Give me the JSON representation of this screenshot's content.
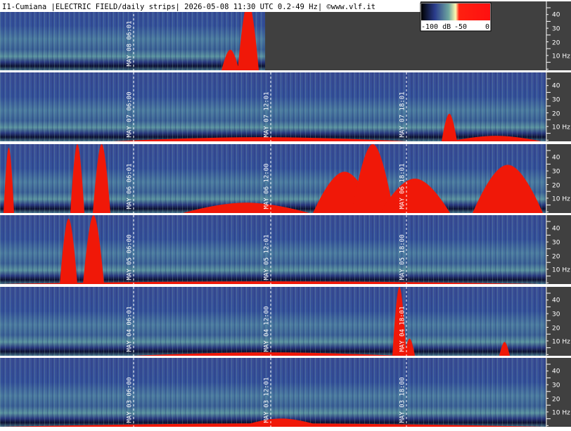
{
  "header": {
    "title": "I1-Cumiana |ELECTRIC FIELD/daily strips| 2026-05-08 11:30 UTC 0.2-49 Hz| ©www.vlf.it"
  },
  "colorbar": {
    "labels": [
      "-100 dB",
      "-50",
      "0"
    ]
  },
  "frequency_axis": {
    "labels": [
      "40",
      "30",
      "20",
      "10 Hz"
    ]
  },
  "strips": [
    {
      "time_labels": [
        "MAY 08 06:01"
      ]
    },
    {
      "time_labels": [
        "MAY 07 06:00",
        "MAY 07 12:01",
        "MAY 07 18:01"
      ]
    },
    {
      "time_labels": [
        "MAY 06 06:01",
        "MAY 06 12:00",
        "MAY 06 18:01"
      ]
    },
    {
      "time_labels": [
        "MAY 05 06:00",
        "MAY 05 12:01",
        "MAY 05 18:00"
      ]
    },
    {
      "time_labels": [
        "MAY 04 06:01",
        "MAY 04 12:00",
        "MAY 04 18:01"
      ]
    },
    {
      "time_labels": [
        "MAY 03 06:00",
        "MAY 03 12:01",
        "MAY 03 18:00"
      ]
    }
  ]
}
